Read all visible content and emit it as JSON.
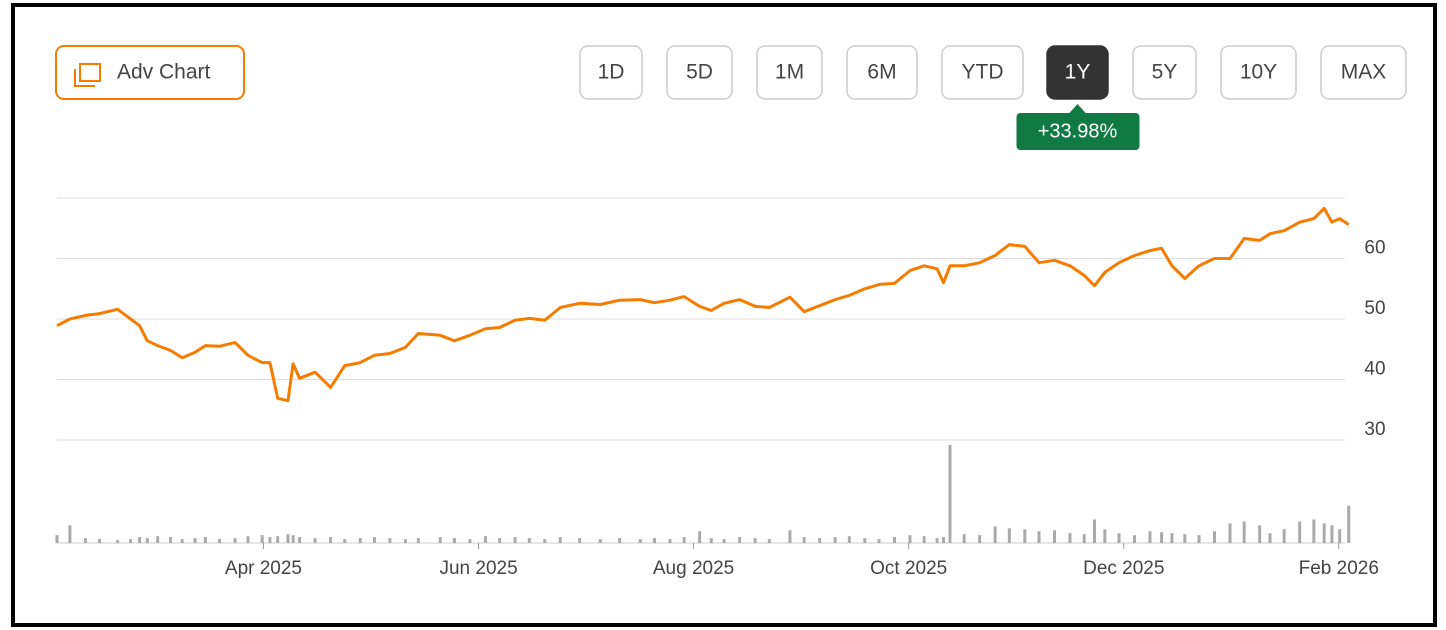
{
  "toolbar": {
    "adv_chart": "Adv Chart",
    "ranges": [
      "1D",
      "5D",
      "1M",
      "6M",
      "YTD",
      "1Y",
      "5Y",
      "10Y",
      "MAX"
    ],
    "active_range": "1Y",
    "change": "+33.98%"
  },
  "chart_data": {
    "type": "line",
    "color": "#f57c00",
    "grid": true,
    "x": [
      2025.09,
      2025.1,
      2025.112,
      2025.123,
      2025.137,
      2025.147,
      2025.154,
      2025.16,
      2025.168,
      2025.178,
      2025.187,
      2025.197,
      2025.205,
      2025.216,
      2025.228,
      2025.238,
      2025.249,
      2025.255,
      2025.261,
      2025.269,
      2025.273,
      2025.278,
      2025.29,
      2025.302,
      2025.313,
      2025.325,
      2025.336,
      2025.348,
      2025.36,
      2025.37,
      2025.387,
      2025.398,
      2025.41,
      2025.422,
      2025.433,
      2025.445,
      2025.456,
      2025.468,
      2025.48,
      2025.495,
      2025.511,
      2025.526,
      2025.542,
      2025.553,
      2025.565,
      2025.576,
      2025.588,
      2025.597,
      2025.607,
      2025.619,
      2025.631,
      2025.642,
      2025.658,
      2025.669,
      2025.681,
      2025.693,
      2025.704,
      2025.716,
      2025.727,
      2025.739,
      2025.751,
      2025.762,
      2025.772,
      2025.777,
      2025.782,
      2025.793,
      2025.805,
      2025.817,
      2025.828,
      2025.84,
      2025.851,
      2025.863,
      2025.875,
      2025.886,
      2025.894,
      2025.902,
      2025.913,
      2025.925,
      2025.937,
      2025.946,
      2025.954,
      2025.964,
      2025.975,
      2025.987,
      2025.999,
      2026.01,
      2026.022,
      2026.03,
      2026.041,
      2026.053,
      2026.064,
      2026.072,
      2026.078,
      2026.084,
      2026.091
    ],
    "values": [
      48.9,
      50,
      50.6,
      50.9,
      51.6,
      50,
      48.9,
      46.4,
      45.6,
      44.8,
      43.6,
      44.5,
      45.6,
      45.5,
      46.1,
      44,
      42.8,
      42.8,
      36.9,
      36.5,
      42.6,
      40.2,
      41.2,
      38.7,
      42.3,
      42.8,
      44,
      44.3,
      45.3,
      47.6,
      47.3,
      46.4,
      47.3,
      48.4,
      48.6,
      49.8,
      50.1,
      49.8,
      51.9,
      52.6,
      52.4,
      53.1,
      53.2,
      52.7,
      53.1,
      53.7,
      52.1,
      51.4,
      52.6,
      53.2,
      52.1,
      51.9,
      53.6,
      51.2,
      52.2,
      53.2,
      53.9,
      55,
      55.7,
      55.9,
      58,
      58.8,
      58.3,
      56,
      58.8,
      58.8,
      59.3,
      60.5,
      62.3,
      62,
      59.3,
      59.7,
      58.8,
      57.2,
      55.5,
      57.7,
      59.3,
      60.5,
      61.3,
      61.7,
      58.8,
      56.7,
      58.8,
      60,
      60,
      63.3,
      63,
      64.1,
      64.6,
      66,
      66.6,
      68.3,
      66,
      66.6,
      65.6
    ],
    "xlim": [
      2025.09,
      2026.092
    ],
    "xticks": [
      {
        "value": 2025.25,
        "label": "Apr 2025"
      },
      {
        "value": 2025.4167,
        "label": "Jun 2025"
      },
      {
        "value": 2025.5833,
        "label": "Aug 2025"
      },
      {
        "value": 2025.75,
        "label": "Oct 2025"
      },
      {
        "value": 2025.9167,
        "label": "Dec 2025"
      },
      {
        "value": 2026.0833,
        "label": "Feb 2026"
      }
    ],
    "ylim": [
      30,
      70
    ],
    "yticks": [
      30,
      40,
      50,
      60
    ],
    "volume": {
      "color": "#aaaaaa",
      "ylim": [
        0,
        100
      ],
      "values": [
        8,
        18,
        5,
        4,
        3,
        4,
        6,
        5,
        7,
        6,
        4,
        5,
        6,
        4,
        5,
        7,
        8,
        6,
        7,
        9,
        8,
        6,
        5,
        6,
        4,
        5,
        6,
        5,
        4,
        5,
        6,
        5,
        4,
        7,
        5,
        6,
        5,
        4,
        6,
        5,
        4,
        5,
        4,
        5,
        4,
        6,
        12,
        5,
        4,
        6,
        5,
        4,
        13,
        6,
        5,
        6,
        7,
        5,
        4,
        6,
        8,
        7,
        5,
        6,
        100,
        9,
        8,
        17,
        15,
        14,
        12,
        13,
        10,
        9,
        24,
        14,
        10,
        8,
        12,
        11,
        10,
        9,
        8,
        12,
        20,
        22,
        18,
        10,
        14,
        22,
        24,
        20,
        18,
        14,
        38
      ]
    }
  }
}
